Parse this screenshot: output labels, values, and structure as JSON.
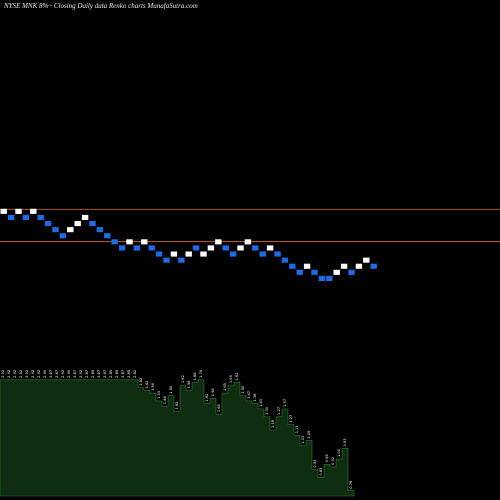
{
  "header": {
    "title": "NYSE MNK 8%~  Closing Daily data  Renko  charts MunafaSutra.com"
  },
  "colors": {
    "background": "#000000",
    "up_brick": "#ffffff",
    "down_brick": "#1e6be6",
    "reference_line": "#c0612a",
    "volume_area": "#0f2d10",
    "volume_area_edge": "#2f7a2f"
  },
  "chart_data": {
    "type": "renko",
    "bricks": [
      {
        "dir": "up",
        "level": 14
      },
      {
        "dir": "down",
        "level": 13
      },
      {
        "dir": "up",
        "level": 14
      },
      {
        "dir": "down",
        "level": 13
      },
      {
        "dir": "up",
        "level": 14
      },
      {
        "dir": "down",
        "level": 13
      },
      {
        "dir": "down",
        "level": 12
      },
      {
        "dir": "down",
        "level": 11
      },
      {
        "dir": "down",
        "level": 10
      },
      {
        "dir": "up",
        "level": 11
      },
      {
        "dir": "up",
        "level": 12
      },
      {
        "dir": "up",
        "level": 13
      },
      {
        "dir": "down",
        "level": 12
      },
      {
        "dir": "down",
        "level": 11
      },
      {
        "dir": "down",
        "level": 10
      },
      {
        "dir": "down",
        "level": 9
      },
      {
        "dir": "down",
        "level": 8
      },
      {
        "dir": "up",
        "level": 9
      },
      {
        "dir": "down",
        "level": 8
      },
      {
        "dir": "up",
        "level": 9
      },
      {
        "dir": "down",
        "level": 8
      },
      {
        "dir": "down",
        "level": 7
      },
      {
        "dir": "down",
        "level": 6
      },
      {
        "dir": "up",
        "level": 7
      },
      {
        "dir": "down",
        "level": 6
      },
      {
        "dir": "up",
        "level": 7
      },
      {
        "dir": "down",
        "level": 8
      },
      {
        "dir": "up",
        "level": 7
      },
      {
        "dir": "up",
        "level": 8
      },
      {
        "dir": "up",
        "level": 9
      },
      {
        "dir": "down",
        "level": 8
      },
      {
        "dir": "down",
        "level": 7
      },
      {
        "dir": "up",
        "level": 8
      },
      {
        "dir": "up",
        "level": 9
      },
      {
        "dir": "down",
        "level": 8
      },
      {
        "dir": "down",
        "level": 7
      },
      {
        "dir": "up",
        "level": 8
      },
      {
        "dir": "down",
        "level": 7
      },
      {
        "dir": "down",
        "level": 6
      },
      {
        "dir": "down",
        "level": 5
      },
      {
        "dir": "down",
        "level": 4
      },
      {
        "dir": "up",
        "level": 5
      },
      {
        "dir": "down",
        "level": 4
      },
      {
        "dir": "down",
        "level": 3
      },
      {
        "dir": "down",
        "level": 3
      },
      {
        "dir": "up",
        "level": 4
      },
      {
        "dir": "up",
        "level": 5
      },
      {
        "dir": "down",
        "level": 4
      },
      {
        "dir": "up",
        "level": 5
      },
      {
        "dir": "up",
        "level": 6
      },
      {
        "dir": "down",
        "level": 5
      }
    ],
    "reference_levels": [
      14.0,
      8.7
    ],
    "volume": [
      {
        "label": "2.92",
        "value": 88
      },
      {
        "label": "2.92",
        "value": 88
      },
      {
        "label": "2.92",
        "value": 88
      },
      {
        "label": "2.92",
        "value": 88
      },
      {
        "label": "2.92",
        "value": 88
      },
      {
        "label": "2.92",
        "value": 88
      },
      {
        "label": "2.92",
        "value": 88
      },
      {
        "label": "2.90",
        "value": 88
      },
      {
        "label": "2.87",
        "value": 88
      },
      {
        "label": "2.87",
        "value": 88
      },
      {
        "label": "2.92",
        "value": 88
      },
      {
        "label": "2.90",
        "value": 88
      },
      {
        "label": "2.87",
        "value": 88
      },
      {
        "label": "2.92",
        "value": 88
      },
      {
        "label": "2.87",
        "value": 88
      },
      {
        "label": "2.85",
        "value": 88
      },
      {
        "label": "2.87",
        "value": 88
      },
      {
        "label": "2.87",
        "value": 88
      },
      {
        "label": "2.85",
        "value": 88
      },
      {
        "label": "2.85",
        "value": 88
      },
      {
        "label": "2.87",
        "value": 88
      },
      {
        "label": "2.85",
        "value": 88
      },
      {
        "label": "2.82",
        "value": 88
      },
      {
        "label": "2.82",
        "value": 82
      },
      {
        "label": "1.62",
        "value": 80
      },
      {
        "label": "1.56",
        "value": 78
      },
      {
        "label": "1.53",
        "value": 72
      },
      {
        "label": "1.48",
        "value": 68
      },
      {
        "label": "1.50",
        "value": 76
      },
      {
        "label": "1.62",
        "value": 64
      },
      {
        "label": "1.62",
        "value": 84
      },
      {
        "label": "1.58",
        "value": 80
      },
      {
        "label": "1.68",
        "value": 86
      },
      {
        "label": "1.74",
        "value": 88
      },
      {
        "label": "1.62",
        "value": 70
      },
      {
        "label": "1.58",
        "value": 74
      },
      {
        "label": "1.65",
        "value": 62
      },
      {
        "label": "1.65",
        "value": 78
      },
      {
        "label": "1.69",
        "value": 84
      },
      {
        "label": "1.62",
        "value": 86
      },
      {
        "label": "1.50",
        "value": 76
      },
      {
        "label": "1.47",
        "value": 72
      },
      {
        "label": "1.38",
        "value": 70
      },
      {
        "label": "1.41",
        "value": 66
      },
      {
        "label": "1.30",
        "value": 60
      },
      {
        "label": "1.18",
        "value": 50
      },
      {
        "label": "1.27",
        "value": 60
      },
      {
        "label": "1.37",
        "value": 66
      },
      {
        "label": "1.27",
        "value": 54
      },
      {
        "label": "1.11",
        "value": 46
      },
      {
        "label": "1.03",
        "value": 38
      },
      {
        "label": "1.06",
        "value": 42
      },
      {
        "label": "0.93",
        "value": 20
      },
      {
        "label": "0.85",
        "value": 14
      },
      {
        "label": "0.95",
        "value": 24
      },
      {
        "label": "0.92",
        "value": 22
      },
      {
        "label": "1.00",
        "value": 28
      },
      {
        "label": "0.93",
        "value": 36
      },
      {
        "label": "0.78",
        "value": 4
      }
    ],
    "grid": false,
    "legend": "none"
  }
}
